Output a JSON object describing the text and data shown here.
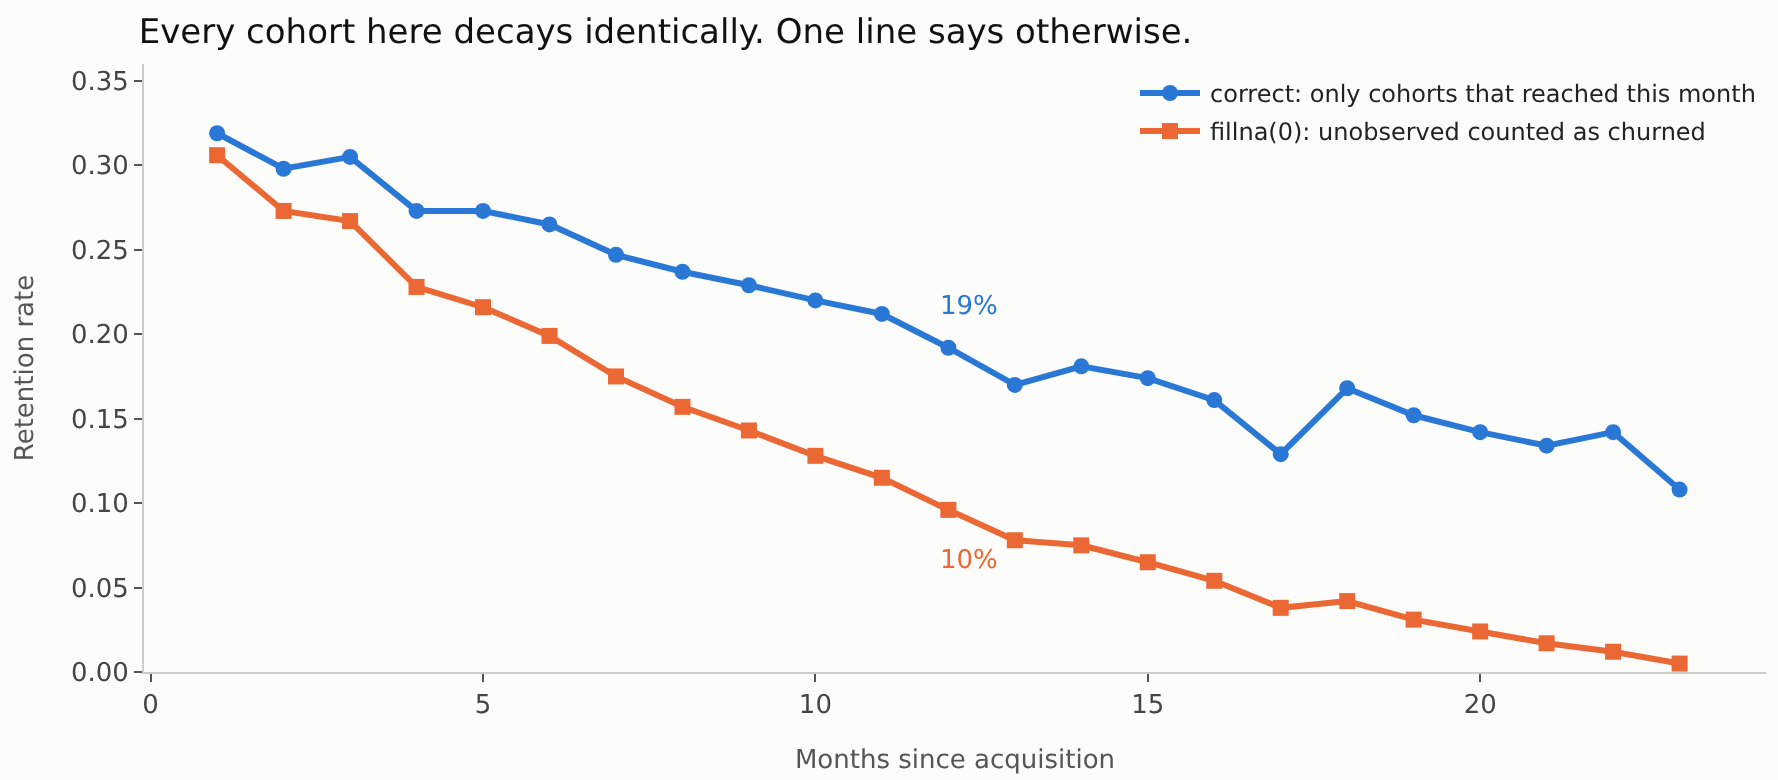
{
  "chart_data": {
    "type": "line",
    "title": "Every cohort here decays identically. One line says otherwise.",
    "xlabel": "Months since acquisition",
    "ylabel": "Retention rate",
    "x": [
      1,
      2,
      3,
      4,
      5,
      6,
      7,
      8,
      9,
      10,
      11,
      12,
      13,
      14,
      15,
      16,
      17,
      18,
      19,
      20,
      21,
      22,
      23
    ],
    "series": [
      {
        "name": "correct: only cohorts that reached this month",
        "color": "#2a78d6",
        "marker": "circle",
        "values": [
          0.319,
          0.298,
          0.305,
          0.273,
          0.273,
          0.265,
          0.247,
          0.237,
          0.229,
          0.22,
          0.212,
          0.192,
          0.17,
          0.181,
          0.174,
          0.161,
          0.129,
          0.168,
          0.152,
          0.142,
          0.134,
          0.142,
          0.108
        ]
      },
      {
        "name": "fillna(0): unobserved counted as churned",
        "color": "#eb6834",
        "marker": "square",
        "values": [
          0.306,
          0.273,
          0.267,
          0.228,
          0.216,
          0.199,
          0.175,
          0.157,
          0.143,
          0.128,
          0.115,
          0.096,
          0.078,
          0.075,
          0.065,
          0.054,
          0.038,
          0.042,
          0.031,
          0.024,
          0.017,
          0.012,
          0.005
        ]
      }
    ],
    "annotations": [
      {
        "text": "19%",
        "x": 12,
        "y": 0.192
      },
      {
        "text": "10%",
        "x": 12,
        "y": 0.096
      }
    ],
    "xlim": [
      -0.1,
      24.3
    ],
    "ylim": [
      0,
      0.36
    ],
    "xticks": [
      0,
      5,
      10,
      15,
      20
    ],
    "yticks": [
      {
        "value": 0,
        "label": "0.00"
      },
      {
        "value": 0.05,
        "label": "0.05"
      },
      {
        "value": 0.1,
        "label": "0.10"
      },
      {
        "value": 0.15,
        "label": "0.15"
      },
      {
        "value": 0.2,
        "label": "0.20"
      },
      {
        "value": 0.25,
        "label": "0.25"
      },
      {
        "value": 0.3,
        "label": "0.30"
      },
      {
        "value": 0.35,
        "label": "0.35"
      }
    ],
    "legend": "top right",
    "line_style": "solid"
  }
}
